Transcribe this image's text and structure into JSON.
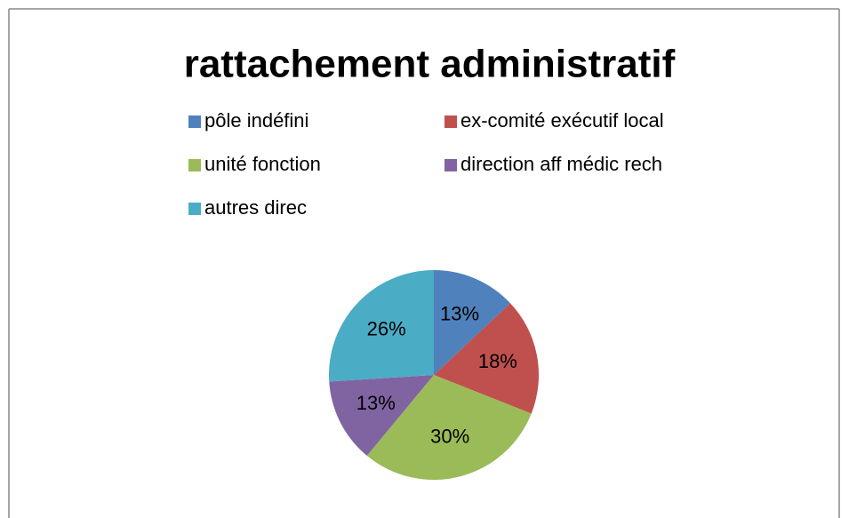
{
  "chart_data": {
    "type": "pie",
    "title": "rattachement administratif",
    "categories": [
      "pôle indéfini",
      "ex-comité exécutif local",
      "unité fonction",
      "direction aff médic rech",
      "autres direc"
    ],
    "values": [
      13,
      18,
      30,
      13,
      26
    ],
    "value_labels": [
      "13%",
      "18%",
      "30%",
      "13%",
      "26%"
    ],
    "colors": [
      "#4f81bd",
      "#c0504d",
      "#9bbb59",
      "#8064a2",
      "#4bacc6"
    ],
    "legend": "top"
  }
}
